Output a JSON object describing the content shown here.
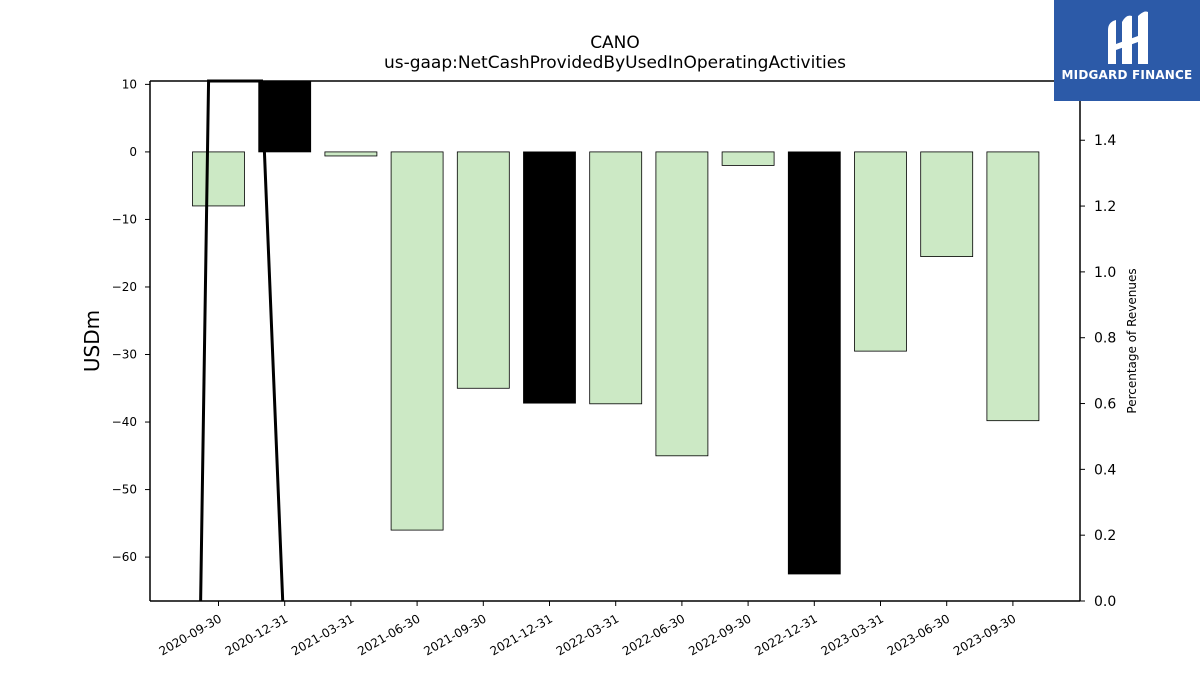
{
  "chart_data": {
    "type": "bar",
    "title": "CANO",
    "subtitle": "us-gaap:NetCashProvidedByUsedInOperatingActivities",
    "ylabel": "USDm",
    "y2label": "Percentage of Revenues",
    "categories": [
      "2020-09-30",
      "2020-12-31",
      "2021-03-31",
      "2021-06-30",
      "2021-09-30",
      "2021-12-31",
      "2022-03-31",
      "2022-06-30",
      "2022-09-30",
      "2022-12-31",
      "2023-03-31",
      "2023-06-30",
      "2023-09-30"
    ],
    "values": [
      -8.0,
      10.5,
      -0.6,
      -56.0,
      -35.0,
      -37.2,
      -37.3,
      -45.0,
      -2.0,
      -62.5,
      -29.5,
      -15.5,
      -39.8
    ],
    "bar_colors": [
      "#cce9c5",
      "#000000",
      "#cce9c5",
      "#cce9c5",
      "#cce9c5",
      "#000000",
      "#cce9c5",
      "#cce9c5",
      "#cce9c5",
      "#000000",
      "#cce9c5",
      "#cce9c5",
      "#cce9c5"
    ],
    "ylim": [
      -66.5,
      10.5
    ],
    "yticks": [
      10,
      0,
      -10,
      -20,
      -30,
      -40,
      -50,
      -60
    ],
    "y2lim": [
      0.0,
      1.58
    ],
    "y2ticks": [
      0.0,
      0.2,
      0.4,
      0.6,
      0.8,
      1.0,
      1.2,
      1.4
    ],
    "line_series": {
      "name": "",
      "x_index": [
        -0.27,
        -0.15,
        0.65,
        0.97
      ],
      "values": [
        0.0,
        1.58,
        1.58,
        0.0
      ],
      "color": "#000000"
    },
    "grid": false,
    "legend": "none"
  },
  "logo": {
    "text": "MIDGARD FINANCE",
    "bg_color": "#2c5aa8"
  }
}
